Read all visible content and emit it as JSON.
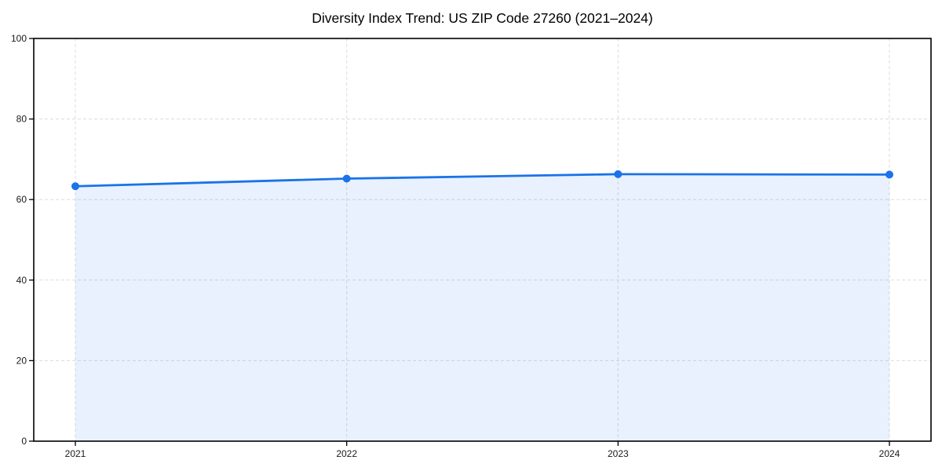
{
  "chart_data": {
    "type": "area",
    "title": "Diversity Index Trend: US ZIP Code 27260 (2021–2024)",
    "categories": [
      "2021",
      "2022",
      "2023",
      "2024"
    ],
    "series": [
      {
        "name": "Diversity Index",
        "values": [
          63.3,
          65.2,
          66.3,
          66.2
        ]
      }
    ],
    "xlabel": "",
    "ylabel": "",
    "ylim": [
      0,
      100
    ],
    "yticks": [
      0,
      20,
      40,
      60,
      80,
      100
    ],
    "grid": true,
    "grid_style": "dashed",
    "legend": false,
    "marker": "circle",
    "colors": {
      "line": "#1a73e8",
      "marker": "#1a73e8",
      "fill": "rgba(26,115,232,0.10)",
      "grid": "#dcdcdc",
      "spine": "#000000",
      "tick": "#000000",
      "tick_label": "#1a1a1a",
      "title": "#000000",
      "background": "#ffffff"
    }
  }
}
